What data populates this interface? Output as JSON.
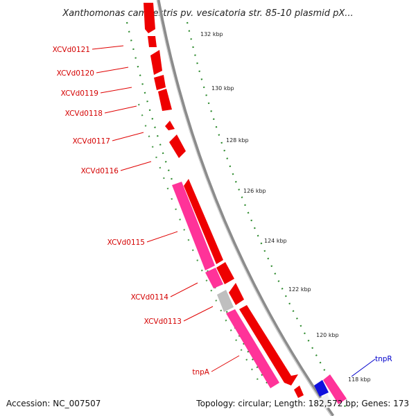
{
  "title": "Xanthomonas campestris pv. vesicatoria str. 85-10 plasmid pX...",
  "accession": "Accession: NC_007507",
  "summary": "Topology: circular; Length: 182,572 bp; Genes: 173",
  "colors": {
    "backbone": "#8c8c8c",
    "forward_gene": "#ee0000",
    "reverse_gene": "#ff3399",
    "pseudo_gene": "#bfbfbf",
    "blue_gene": "#1010dd",
    "dotted_guides": "#2e8b2e",
    "label_red": "#d40000",
    "label_blue": "#0000cc"
  },
  "ticks": [
    {
      "label": "132 kbp"
    },
    {
      "label": "130 kbp"
    },
    {
      "label": "128 kbp"
    },
    {
      "label": "126 kbp"
    },
    {
      "label": "124 kbp"
    },
    {
      "label": "122 kbp"
    },
    {
      "label": "120 kbp"
    },
    {
      "label": "118 kbp"
    }
  ],
  "gene_labels": [
    {
      "name": "XCVd0121",
      "color": "red"
    },
    {
      "name": "XCVd0120",
      "color": "red"
    },
    {
      "name": "XCVd0119",
      "color": "red"
    },
    {
      "name": "XCVd0118",
      "color": "red"
    },
    {
      "name": "XCVd0117",
      "color": "red"
    },
    {
      "name": "XCVd0116",
      "color": "red"
    },
    {
      "name": "XCVd0115",
      "color": "red"
    },
    {
      "name": "XCVd0114",
      "color": "red"
    },
    {
      "name": "XCVd0113",
      "color": "red"
    },
    {
      "name": "tnpA",
      "color": "red"
    },
    {
      "name": "tnpR",
      "color": "blue"
    }
  ]
}
